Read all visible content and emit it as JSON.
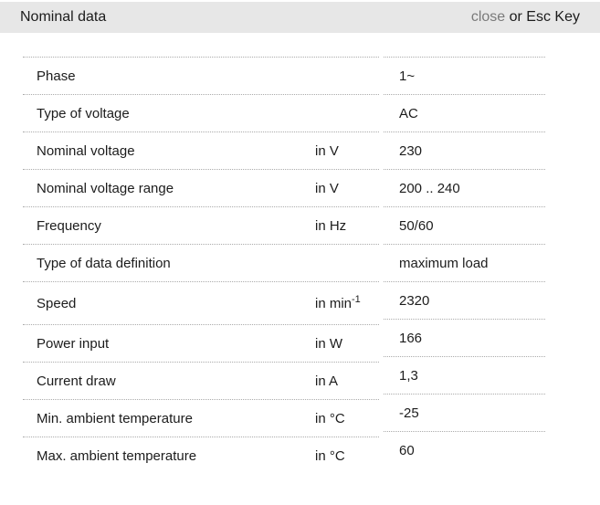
{
  "header": {
    "title": "Nominal data",
    "close_label": "close",
    "close_suffix": " or Esc Key"
  },
  "table": {
    "rows": [
      {
        "label": "Phase",
        "unit": "",
        "unit_sup": "",
        "value": "1~"
      },
      {
        "label": "Type of voltage",
        "unit": "",
        "unit_sup": "",
        "value": "AC"
      },
      {
        "label": "Nominal voltage",
        "unit": "in V",
        "unit_sup": "",
        "value": "230"
      },
      {
        "label": "Nominal voltage range",
        "unit": "in V",
        "unit_sup": "",
        "value": "200 .. 240"
      },
      {
        "label": "Frequency",
        "unit": "in Hz",
        "unit_sup": "",
        "value": "50/60"
      },
      {
        "label": "Type of data definition",
        "unit": "",
        "unit_sup": "",
        "value": "maximum load"
      },
      {
        "label": "Speed",
        "unit": "in min",
        "unit_sup": "-1",
        "value": "2320"
      },
      {
        "label": "Power input",
        "unit": "in W",
        "unit_sup": "",
        "value": "166"
      },
      {
        "label": "Current draw",
        "unit": "in A",
        "unit_sup": "",
        "value": "1,3"
      },
      {
        "label": "Min. ambient temperature",
        "unit": "in °C",
        "unit_sup": "",
        "value": "-25"
      },
      {
        "label": "Max. ambient temperature",
        "unit": "in °C",
        "unit_sup": "",
        "value": "60"
      }
    ]
  },
  "colors": {
    "header_bg": "#e7e7e7",
    "text": "#1c1c1c",
    "close_link": "#7a7a7a",
    "divider": "#ababab",
    "background": "#ffffff"
  }
}
